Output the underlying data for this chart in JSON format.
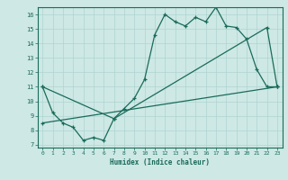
{
  "xlabel": "Humidex (Indice chaleur)",
  "xlim": [
    -0.5,
    23.5
  ],
  "ylim": [
    6.8,
    16.5
  ],
  "xticks": [
    0,
    1,
    2,
    3,
    4,
    5,
    6,
    7,
    8,
    9,
    10,
    11,
    12,
    13,
    14,
    15,
    16,
    17,
    18,
    19,
    20,
    21,
    22,
    23
  ],
  "yticks": [
    7,
    8,
    9,
    10,
    11,
    12,
    13,
    14,
    15,
    16
  ],
  "bg_color": "#cde8e5",
  "grid_color": "#afd4d0",
  "line_color": "#1a6b5a",
  "series1_x": [
    0,
    1,
    2,
    3,
    4,
    5,
    6,
    7,
    8,
    9,
    10,
    11,
    12,
    13,
    14,
    15,
    16,
    17,
    18,
    19,
    20,
    21,
    22,
    23
  ],
  "series1_y": [
    11.0,
    9.2,
    8.5,
    8.2,
    7.3,
    7.5,
    7.3,
    8.8,
    9.5,
    10.2,
    11.5,
    14.6,
    16.0,
    15.5,
    15.2,
    15.8,
    15.5,
    16.5,
    15.2,
    15.1,
    14.3,
    12.2,
    11.0,
    11.0
  ],
  "series2_x": [
    0,
    7,
    22,
    23
  ],
  "series2_y": [
    11.0,
    8.8,
    15.1,
    11.0
  ],
  "series3_x": [
    0,
    23
  ],
  "series3_y": [
    8.5,
    11.0
  ]
}
